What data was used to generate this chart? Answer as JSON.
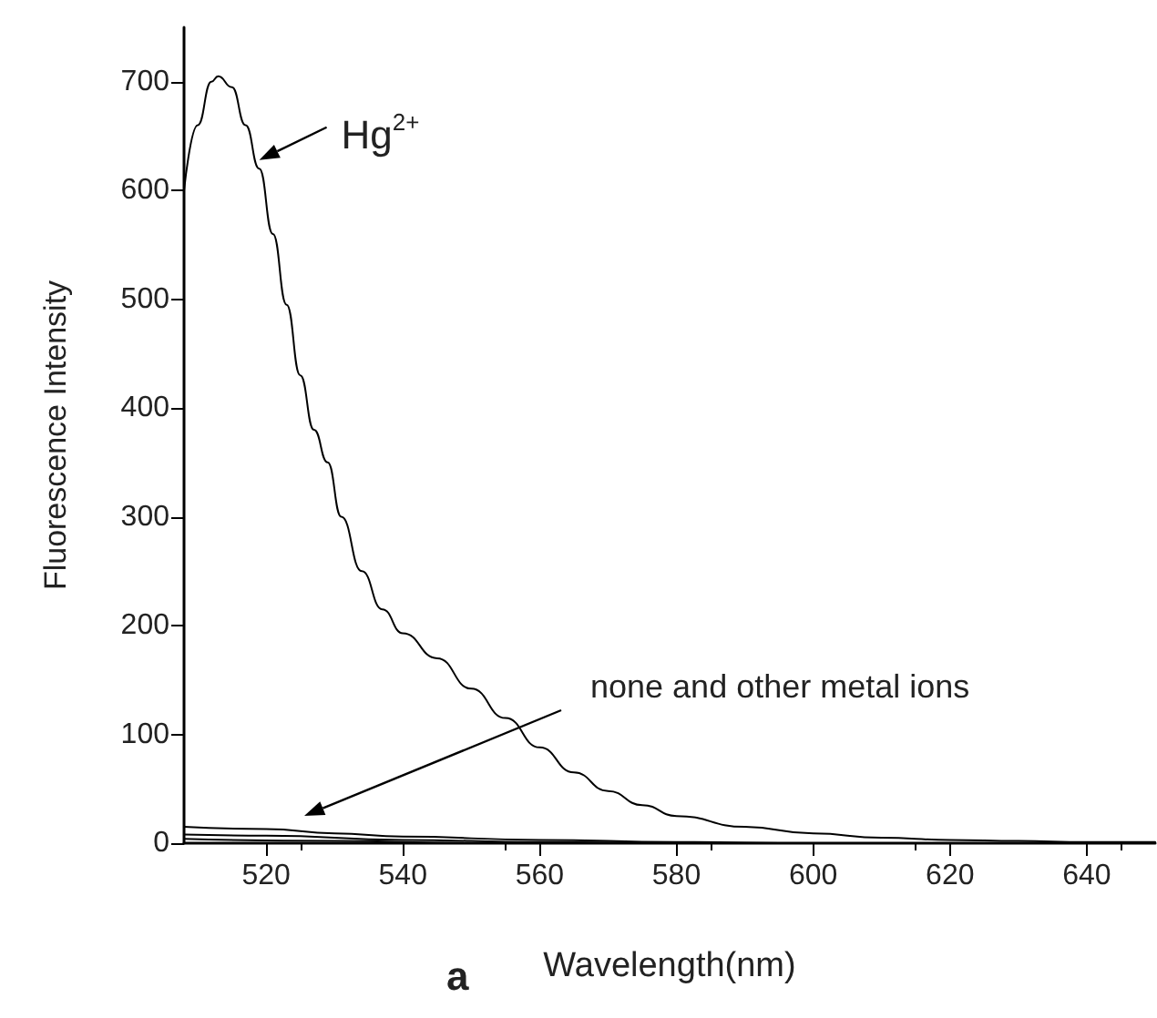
{
  "chart_data": {
    "type": "line",
    "xlabel": "Wavelength(nm)",
    "ylabel": "Fluorescence Intensity",
    "xlim": [
      508,
      650
    ],
    "ylim": [
      0,
      750
    ],
    "xticks": [
      520,
      540,
      560,
      580,
      600,
      620,
      640
    ],
    "yticks": [
      0,
      100,
      200,
      300,
      400,
      500,
      600,
      700
    ],
    "grid": false,
    "marker": "none",
    "line_style": "solid",
    "series": [
      {
        "color": "#000000",
        "x": [
          508,
          510,
          512,
          513,
          515,
          517,
          519,
          521,
          523,
          525,
          527,
          529,
          531,
          534,
          537,
          540,
          545,
          550,
          555,
          560,
          565,
          570,
          575,
          580,
          590,
          600,
          610,
          620,
          630,
          640,
          650
        ],
        "values": [
          600,
          660,
          700,
          705,
          695,
          660,
          620,
          560,
          495,
          430,
          380,
          350,
          300,
          250,
          215,
          193,
          170,
          142,
          115,
          88,
          65,
          48,
          35,
          25,
          15,
          9,
          5,
          3,
          2,
          1,
          1
        ]
      },
      {
        "color": "#000000",
        "x": [
          508,
          520,
          530,
          540,
          560,
          580,
          600,
          650
        ],
        "values": [
          15,
          13,
          9,
          6,
          3,
          1,
          0,
          0
        ]
      },
      {
        "color": "#000000",
        "x": [
          508,
          520,
          540,
          560,
          580,
          650
        ],
        "values": [
          8,
          7,
          3,
          1,
          0,
          0
        ]
      },
      {
        "color": "#000000",
        "x": [
          508,
          530,
          550,
          650
        ],
        "values": [
          4,
          2,
          0,
          0
        ]
      }
    ],
    "annotations": [
      {
        "text": "Hg$^{2+}$",
        "x": 519,
        "y": 628
      },
      "none and other metal ions",
      "a"
    ]
  }
}
